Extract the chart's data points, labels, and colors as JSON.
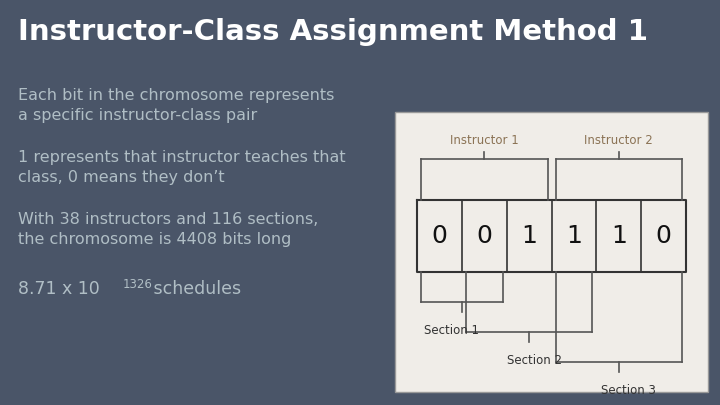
{
  "background_color": "#4a5568",
  "title": "Instructor-Class Assignment Method 1",
  "title_color": "#ffffff",
  "title_fontsize": 21,
  "body_text_color": "#b0bec5",
  "body_fontsize": 11.5,
  "bullet1_line1": "Each bit in the chromosome represents",
  "bullet1_line2": "a specific instructor-class pair",
  "bullet2_line1": "1 represents that instructor teaches that",
  "bullet2_line2": "class, 0 means they don’t",
  "bullet3_line1": "With 38 instructors and 116 sections,",
  "bullet3_line2": "the chromosome is 4408 bits long",
  "bullet4_prefix": "8.71 x 10",
  "bullet4_exp": "1326",
  "bullet4_suffix": " schedules",
  "bits": [
    "0",
    "0",
    "1",
    "1",
    "1",
    "0"
  ],
  "instructor1_label": "Instructor 1",
  "instructor2_label": "Instructor 2",
  "section1_label": "Section 1",
  "section2_label": "Section 2",
  "section3_label": "Section 3",
  "label_color_instructor": "#8b7355",
  "diagram_bg": "#f0ede8",
  "bit_fontsize": 18,
  "bit_color": "#111111",
  "diagram_line_color": "#555555"
}
